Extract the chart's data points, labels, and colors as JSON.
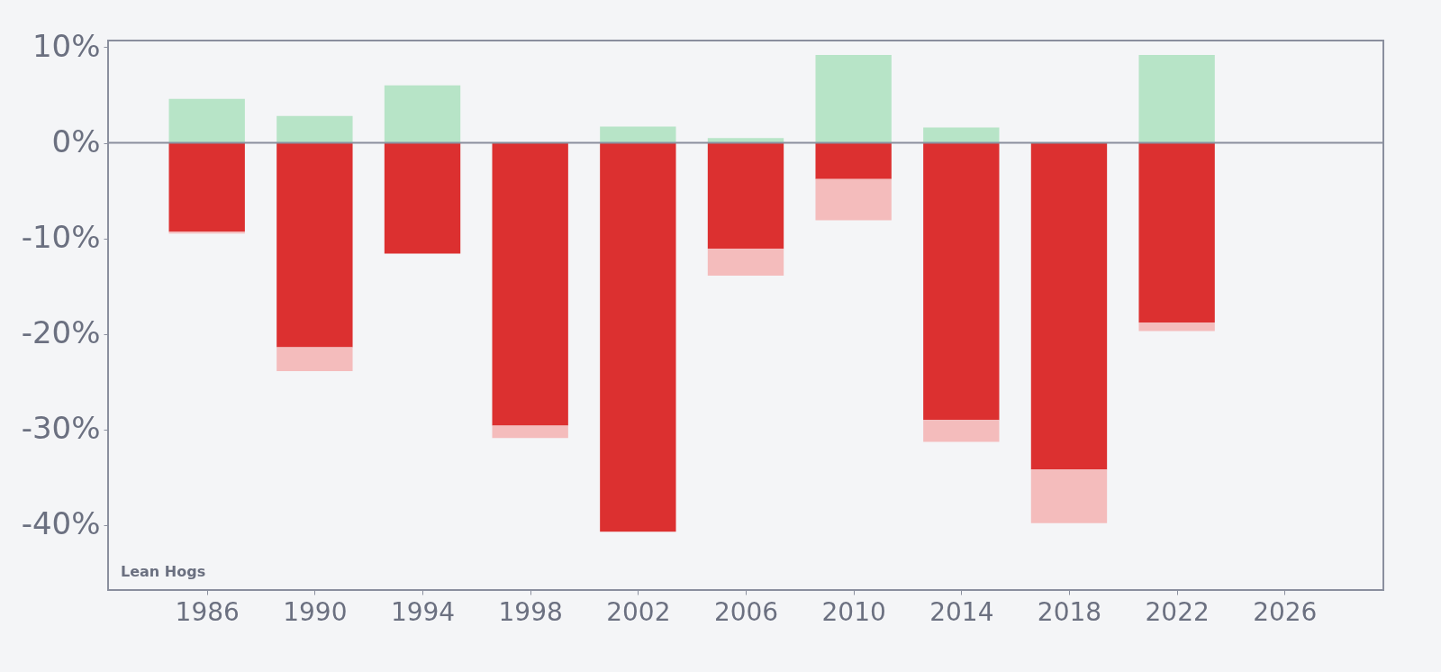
{
  "chart_data": {
    "type": "bar",
    "stacked": true,
    "x": [
      1986,
      1990,
      1994,
      1998,
      2002,
      2006,
      2010,
      2014,
      2018,
      2022
    ],
    "series": [
      {
        "color": "#b7e4c7",
        "values": [
          4.6,
          2.8,
          6.0,
          null,
          1.7,
          0.5,
          9.2,
          1.6,
          null,
          9.2
        ]
      },
      {
        "color": "#dc3030",
        "values": [
          -9.3,
          -21.4,
          -11.6,
          -29.6,
          -40.7,
          -11.1,
          -3.8,
          -29.0,
          -34.2,
          -18.8
        ]
      },
      {
        "color": "#f4bcbc",
        "values": [
          -0.2,
          -2.5,
          null,
          -1.3,
          null,
          -2.8,
          -4.3,
          -2.3,
          -5.6,
          -0.9
        ]
      }
    ],
    "xlim": [
      1982.5,
      2029.5
    ],
    "xticks": [
      1986,
      1990,
      1994,
      1998,
      2002,
      2006,
      2010,
      2014,
      2018,
      2022,
      2026
    ],
    "ylim": [
      -46.8,
      10.7
    ],
    "yticks": [
      {
        "value": -40,
        "label": "-40%"
      },
      {
        "value": -30,
        "label": "-30%"
      },
      {
        "value": -20,
        "label": "-20%"
      },
      {
        "value": -10,
        "label": "-10%"
      },
      {
        "value": 0,
        "label": "0%"
      },
      {
        "value": 10,
        "label": "10%"
      }
    ],
    "ref_lines": [
      {
        "axis": "y",
        "value": 0,
        "color": "#8a8f9e"
      }
    ],
    "grid": false,
    "annotations": [
      "Lean Hogs"
    ]
  }
}
